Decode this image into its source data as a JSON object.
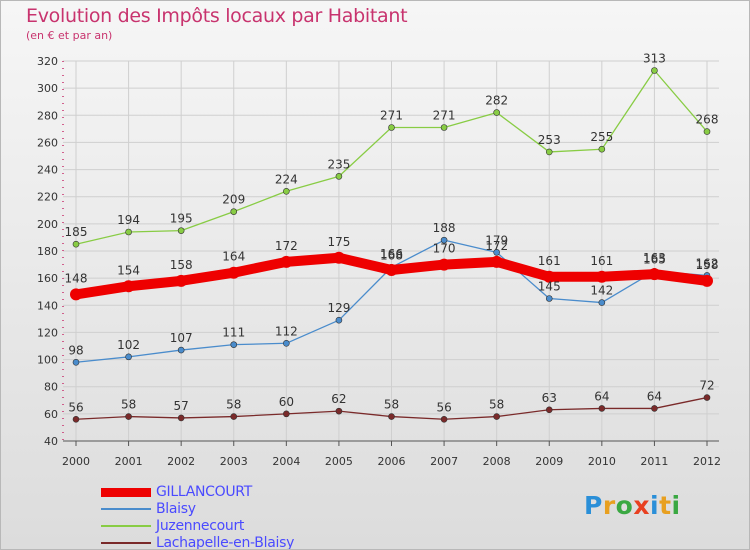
{
  "title": "Evolution des Impôts locaux par Habitant",
  "subtitle": "(en € et par an)",
  "logo": {
    "text": "Proxiti",
    "letters": [
      "P",
      "r",
      "o",
      "x",
      "i",
      "t",
      "i"
    ],
    "colors": [
      "#2a8fd8",
      "#e8a020",
      "#3aa842",
      "#e84020",
      "#2a8fd8",
      "#e8a020",
      "#3aa842"
    ]
  },
  "chart_data": {
    "type": "line",
    "categories": [
      "2000",
      "2001",
      "2002",
      "2003",
      "2004",
      "2005",
      "2006",
      "2007",
      "2008",
      "2009",
      "2010",
      "2011",
      "2012"
    ],
    "ylim": [
      40,
      320
    ],
    "yticks": [
      40,
      60,
      80,
      100,
      120,
      140,
      160,
      180,
      200,
      220,
      240,
      260,
      280,
      300,
      320
    ],
    "grid": true,
    "legend_position": "bottom-left",
    "series": [
      {
        "name": "GILLANCOURT",
        "color": "#ee0000",
        "emphasis": true,
        "values": [
          148,
          154,
          158,
          164,
          172,
          175,
          166,
          170,
          172,
          161,
          161,
          163,
          158
        ]
      },
      {
        "name": "Blaisy",
        "color": "#4a8ccc",
        "emphasis": false,
        "values": [
          98,
          102,
          107,
          111,
          112,
          129,
          168,
          188,
          179,
          145,
          142,
          165,
          162
        ]
      },
      {
        "name": "Juzennecourt",
        "color": "#88cc44",
        "emphasis": false,
        "values": [
          185,
          194,
          195,
          209,
          224,
          235,
          271,
          271,
          282,
          253,
          255,
          313,
          268
        ]
      },
      {
        "name": "Lachapelle-en-Blaisy",
        "color": "#7a2a2a",
        "emphasis": false,
        "values": [
          56,
          58,
          57,
          58,
          60,
          62,
          58,
          56,
          58,
          63,
          64,
          64,
          72
        ]
      }
    ]
  }
}
